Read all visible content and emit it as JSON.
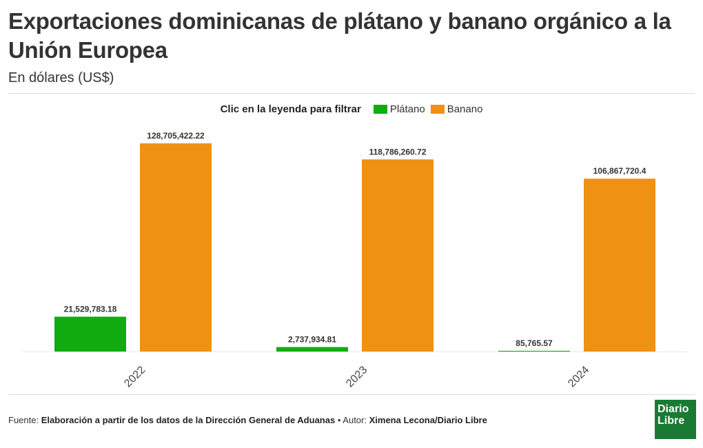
{
  "header": {
    "title": "Exportaciones dominicanas de plátano y banano orgánico a la Unión Europea",
    "subtitle": "En dólares (US$)"
  },
  "legend": {
    "title": "Clic en la leyenda para filtrar"
  },
  "colors": {
    "platano": "#10ac10",
    "banano": "#ef9211",
    "axis": "#e6e6e6",
    "label": "#333333"
  },
  "chart_data": {
    "type": "bar",
    "categories": [
      "2022",
      "2023",
      "2024"
    ],
    "series": [
      {
        "name": "Plátano",
        "values": [
          21529783.18,
          2737934.81,
          85765.57
        ],
        "labels": [
          "21,529,783.18",
          "2,737,934.81",
          "85,765.57"
        ]
      },
      {
        "name": "Banano",
        "values": [
          128705422.22,
          118786260.72,
          106867720.4
        ],
        "labels": [
          "128,705,422.22",
          "118,786,260.72",
          "106,867,720.4"
        ]
      }
    ],
    "ylim": [
      0,
      128705422.22
    ],
    "grid": false,
    "legend_position": "top-center"
  },
  "footer": {
    "source_label": "Fuente:",
    "source_text": "Elaboración a partir de los datos de la Dirección General de Aduanas",
    "separator": "•",
    "author_label": "Autor:",
    "author_text": "Ximena Lecona/Diario Libre"
  },
  "logo": {
    "line1": "Diario",
    "line2": "Libre"
  }
}
